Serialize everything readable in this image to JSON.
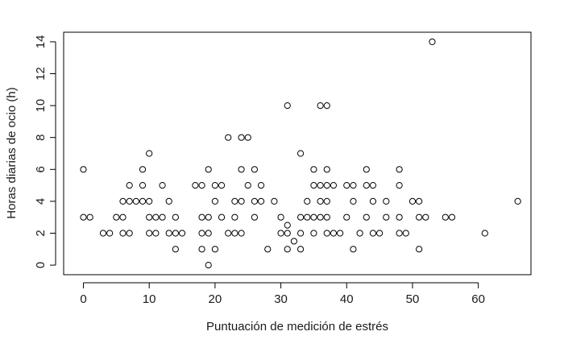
{
  "chart_data": {
    "type": "scatter",
    "xlabel": "Puntuación de medición de estrés",
    "ylabel": "Horas diarias de ocio (h)",
    "xlim": [
      -3,
      68
    ],
    "ylim": [
      -0.6,
      14.6
    ],
    "xticks": [
      0,
      10,
      20,
      30,
      40,
      50,
      60
    ],
    "yticks": [
      0,
      2,
      4,
      6,
      8,
      10,
      12,
      14
    ],
    "grid": false,
    "legend": "none",
    "marker": "open-circle",
    "points": [
      [
        0,
        6
      ],
      [
        0,
        3
      ],
      [
        1,
        3
      ],
      [
        3,
        2
      ],
      [
        4,
        2
      ],
      [
        5,
        3
      ],
      [
        6,
        3
      ],
      [
        6,
        4
      ],
      [
        6,
        2
      ],
      [
        7,
        5
      ],
      [
        7,
        4
      ],
      [
        7,
        2
      ],
      [
        8,
        4
      ],
      [
        9,
        6
      ],
      [
        9,
        5
      ],
      [
        9,
        4
      ],
      [
        10,
        7
      ],
      [
        10,
        4
      ],
      [
        10,
        3
      ],
      [
        10,
        2
      ],
      [
        11,
        3
      ],
      [
        11,
        2
      ],
      [
        12,
        5
      ],
      [
        12,
        3
      ],
      [
        13,
        4
      ],
      [
        13,
        2
      ],
      [
        14,
        3
      ],
      [
        14,
        2
      ],
      [
        14,
        1
      ],
      [
        15,
        2
      ],
      [
        17,
        5
      ],
      [
        18,
        5
      ],
      [
        18,
        3
      ],
      [
        18,
        2
      ],
      [
        18,
        1
      ],
      [
        19,
        6
      ],
      [
        19,
        3
      ],
      [
        19,
        2
      ],
      [
        19,
        0
      ],
      [
        20,
        5
      ],
      [
        20,
        4
      ],
      [
        20,
        1
      ],
      [
        21,
        5
      ],
      [
        21,
        3
      ],
      [
        22,
        8
      ],
      [
        22,
        2
      ],
      [
        23,
        4
      ],
      [
        23,
        3
      ],
      [
        23,
        2
      ],
      [
        24,
        8
      ],
      [
        24,
        6
      ],
      [
        24,
        4
      ],
      [
        24,
        2
      ],
      [
        25,
        8
      ],
      [
        25,
        5
      ],
      [
        26,
        6
      ],
      [
        26,
        4
      ],
      [
        26,
        3
      ],
      [
        27,
        5
      ],
      [
        27,
        4
      ],
      [
        28,
        1
      ],
      [
        29,
        4
      ],
      [
        30,
        3
      ],
      [
        30,
        2
      ],
      [
        31,
        10
      ],
      [
        31,
        2.5
      ],
      [
        31,
        2
      ],
      [
        31,
        1
      ],
      [
        32,
        1.5
      ],
      [
        33,
        7
      ],
      [
        33,
        3
      ],
      [
        33,
        2
      ],
      [
        33,
        1
      ],
      [
        34,
        4
      ],
      [
        34,
        3
      ],
      [
        35,
        6
      ],
      [
        35,
        5
      ],
      [
        35,
        3
      ],
      [
        35,
        2
      ],
      [
        36,
        10
      ],
      [
        36,
        5
      ],
      [
        36,
        4
      ],
      [
        36,
        3
      ],
      [
        37,
        10
      ],
      [
        37,
        6
      ],
      [
        37,
        5
      ],
      [
        37,
        4
      ],
      [
        37,
        3
      ],
      [
        37,
        2
      ],
      [
        38,
        5
      ],
      [
        38,
        2
      ],
      [
        39,
        2
      ],
      [
        40,
        5
      ],
      [
        40,
        3
      ],
      [
        41,
        5
      ],
      [
        41,
        4
      ],
      [
        41,
        1
      ],
      [
        42,
        2
      ],
      [
        43,
        6
      ],
      [
        43,
        5
      ],
      [
        43,
        3
      ],
      [
        44,
        5
      ],
      [
        44,
        4
      ],
      [
        44,
        2
      ],
      [
        45,
        2
      ],
      [
        46,
        4
      ],
      [
        46,
        3
      ],
      [
        48,
        6
      ],
      [
        48,
        5
      ],
      [
        48,
        3
      ],
      [
        48,
        2
      ],
      [
        49,
        2
      ],
      [
        50,
        4
      ],
      [
        51,
        4
      ],
      [
        51,
        3
      ],
      [
        51,
        1
      ],
      [
        52,
        3
      ],
      [
        53,
        14
      ],
      [
        55,
        3
      ],
      [
        56,
        3
      ],
      [
        61,
        2
      ],
      [
        66,
        4
      ]
    ]
  }
}
